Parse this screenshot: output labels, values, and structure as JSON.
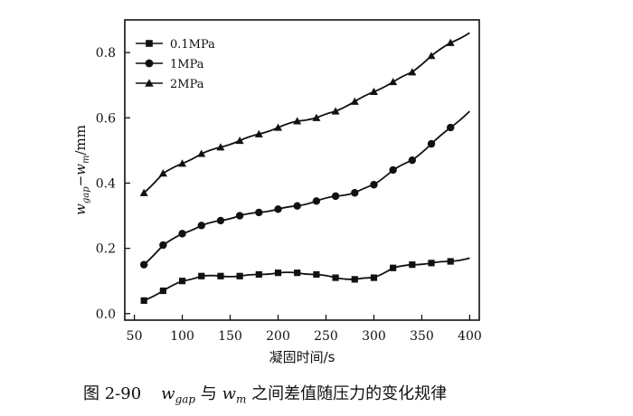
{
  "chart_data": {
    "type": "line",
    "title": "",
    "xlabel": "凝固时间/s",
    "ylabel": "w_gap−w_m/mm",
    "ylabel_parts": {
      "w1": "w",
      "sub1": "gap",
      "dash": "−",
      "w2": "w",
      "sub2": "m",
      "unit": "/mm"
    },
    "xlim": [
      40,
      410
    ],
    "ylim": [
      -0.02,
      0.9
    ],
    "xticks": [
      50,
      100,
      150,
      200,
      250,
      300,
      350,
      400
    ],
    "yticks": [
      0.0,
      0.2,
      0.4,
      0.6,
      0.8
    ],
    "ytick_labels": [
      "0.0",
      "0.2",
      "0.4",
      "0.6",
      "0.8"
    ],
    "legend_position": "top-left",
    "series": [
      {
        "name": "0.1MPa",
        "marker": "square",
        "x": [
          60,
          80,
          100,
          120,
          140,
          160,
          180,
          200,
          220,
          240,
          260,
          280,
          300,
          320,
          340,
          360,
          380,
          400
        ],
        "y": [
          0.04,
          0.07,
          0.1,
          0.115,
          0.115,
          0.115,
          0.12,
          0.125,
          0.125,
          0.12,
          0.11,
          0.105,
          0.11,
          0.14,
          0.15,
          0.155,
          0.16,
          0.17
        ],
        "marker_x": [
          60,
          80,
          100,
          120,
          140,
          160,
          180,
          200,
          220,
          240,
          260,
          280,
          300,
          320,
          340,
          360,
          380
        ],
        "marker_y": [
          0.04,
          0.07,
          0.1,
          0.115,
          0.115,
          0.115,
          0.12,
          0.125,
          0.125,
          0.12,
          0.11,
          0.105,
          0.11,
          0.14,
          0.15,
          0.155,
          0.16
        ]
      },
      {
        "name": "1MPa",
        "marker": "circle",
        "x": [
          60,
          80,
          100,
          120,
          140,
          160,
          180,
          200,
          220,
          240,
          260,
          280,
          300,
          320,
          340,
          360,
          380,
          400
        ],
        "y": [
          0.15,
          0.21,
          0.245,
          0.27,
          0.285,
          0.3,
          0.31,
          0.32,
          0.33,
          0.345,
          0.36,
          0.37,
          0.395,
          0.44,
          0.47,
          0.52,
          0.57,
          0.62
        ],
        "marker_x": [
          60,
          80,
          100,
          120,
          140,
          160,
          180,
          200,
          220,
          240,
          260,
          280,
          300,
          320,
          340,
          360,
          380
        ],
        "marker_y": [
          0.15,
          0.21,
          0.245,
          0.27,
          0.285,
          0.3,
          0.31,
          0.32,
          0.33,
          0.345,
          0.36,
          0.37,
          0.395,
          0.44,
          0.47,
          0.52,
          0.57
        ]
      },
      {
        "name": "2MPa",
        "marker": "triangle",
        "x": [
          60,
          80,
          100,
          120,
          140,
          160,
          180,
          200,
          220,
          240,
          260,
          280,
          300,
          320,
          340,
          360,
          380,
          400
        ],
        "y": [
          0.37,
          0.43,
          0.46,
          0.49,
          0.51,
          0.53,
          0.55,
          0.57,
          0.59,
          0.6,
          0.62,
          0.65,
          0.68,
          0.71,
          0.74,
          0.79,
          0.83,
          0.86
        ],
        "marker_x": [
          60,
          80,
          100,
          120,
          140,
          160,
          180,
          200,
          220,
          240,
          260,
          280,
          300,
          320,
          340,
          360,
          380
        ],
        "marker_y": [
          0.37,
          0.43,
          0.46,
          0.49,
          0.51,
          0.53,
          0.55,
          0.57,
          0.59,
          0.6,
          0.62,
          0.65,
          0.68,
          0.71,
          0.74,
          0.79,
          0.83
        ]
      }
    ]
  },
  "caption": {
    "figure_number": "图 2-90",
    "w1": "w",
    "sub1": "gap",
    "connector": " 与 ",
    "w2": "w",
    "sub2": "m",
    "rest": " 之间差值随压力的变化规律"
  }
}
